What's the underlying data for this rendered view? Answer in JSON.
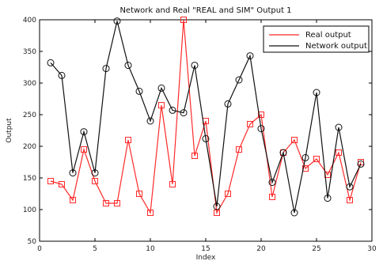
{
  "chart_data": {
    "type": "line",
    "title": "Network and Real \"REAL and SIM\" Output 1",
    "xlabel": "Index",
    "ylabel": "Output",
    "xlim": [
      0,
      30
    ],
    "ylim": [
      50,
      400
    ],
    "xticks": [
      0,
      5,
      10,
      15,
      20,
      25,
      30
    ],
    "yticks": [
      50,
      100,
      150,
      200,
      250,
      300,
      350,
      400
    ],
    "grid": false,
    "legend_position": "top-right",
    "x": [
      1,
      2,
      3,
      4,
      5,
      6,
      7,
      8,
      9,
      10,
      11,
      12,
      13,
      14,
      15,
      16,
      17,
      18,
      19,
      20,
      21,
      22,
      23,
      24,
      25,
      26,
      27,
      28,
      29
    ],
    "series": [
      {
        "name": "Real output",
        "color": "#ff2a2a",
        "marker": "square",
        "values": [
          145,
          140,
          115,
          195,
          145,
          110,
          110,
          210,
          125,
          95,
          265,
          140,
          400,
          185,
          240,
          95,
          125,
          195,
          235,
          250,
          120,
          190,
          210,
          165,
          180,
          155,
          190,
          115,
          175
        ]
      },
      {
        "name": "Network output",
        "color": "#111111",
        "marker": "circle",
        "values": [
          332,
          312,
          158,
          223,
          158,
          323,
          398,
          328,
          287,
          240,
          292,
          257,
          253,
          328,
          212,
          105,
          267,
          305,
          343,
          228,
          143,
          190,
          95,
          182,
          285,
          118,
          230,
          136,
          172
        ]
      }
    ]
  }
}
